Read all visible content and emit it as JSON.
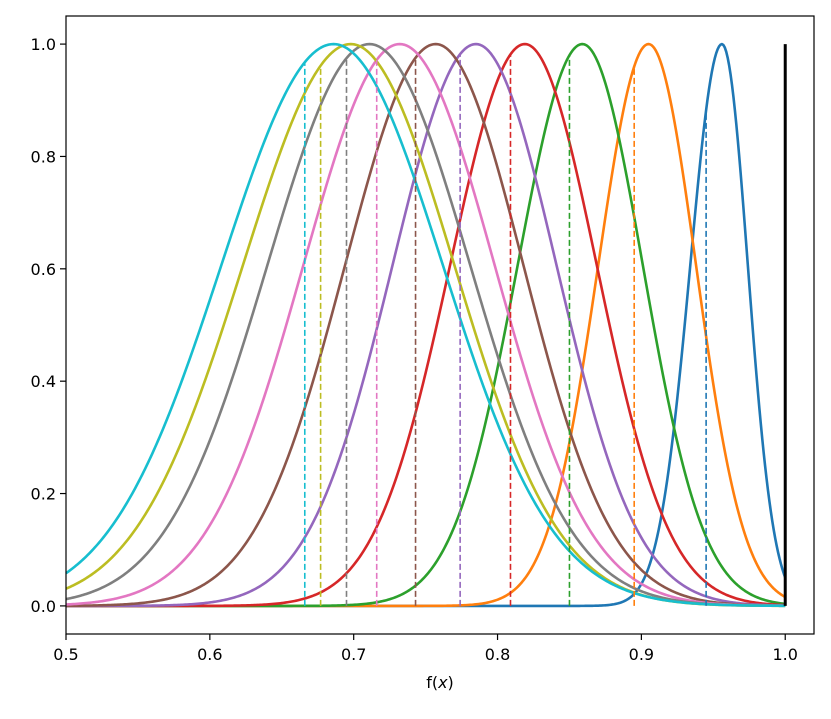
{
  "chart_data": {
    "type": "line",
    "title": "",
    "xlabel_prefix": "f(",
    "xlabel_var": "x",
    "xlabel_suffix": ")",
    "ylabel": "",
    "xlim": [
      0.5,
      1.02
    ],
    "ylim": [
      -0.05,
      1.05
    ],
    "x_ticks": [
      0.5,
      0.6,
      0.7,
      0.8,
      0.9,
      1.0
    ],
    "x_tick_labels": [
      "0.5",
      "0.6",
      "0.7",
      "0.8",
      "0.9",
      "1.0"
    ],
    "y_ticks": [
      0.0,
      0.2,
      0.4,
      0.6,
      0.8,
      1.0
    ],
    "y_tick_labels": [
      "0.0",
      "0.2",
      "0.4",
      "0.6",
      "0.8",
      "1.0"
    ],
    "grid": false,
    "legend": "none",
    "series": [
      {
        "color": "#1f77b4",
        "peak": 0.956,
        "sigma_left": 0.022,
        "sigma_right": 0.018,
        "mean_line": 0.945
      },
      {
        "color": "#ff7f0e",
        "peak": 0.905,
        "sigma_left": 0.035,
        "sigma_right": 0.033,
        "mean_line": 0.895
      },
      {
        "color": "#2ca02c",
        "peak": 0.859,
        "sigma_left": 0.045,
        "sigma_right": 0.042,
        "mean_line": 0.85
      },
      {
        "color": "#d62728",
        "peak": 0.819,
        "sigma_left": 0.052,
        "sigma_right": 0.05,
        "mean_line": 0.809
      },
      {
        "color": "#9467bd",
        "peak": 0.785,
        "sigma_left": 0.058,
        "sigma_right": 0.056,
        "mean_line": 0.774
      },
      {
        "color": "#8c564b",
        "peak": 0.757,
        "sigma_left": 0.063,
        "sigma_right": 0.061,
        "mean_line": 0.743
      },
      {
        "color": "#e377c2",
        "peak": 0.732,
        "sigma_left": 0.067,
        "sigma_right": 0.066,
        "mean_line": 0.716
      },
      {
        "color": "#7f7f7f",
        "peak": 0.711,
        "sigma_left": 0.071,
        "sigma_right": 0.07,
        "mean_line": 0.695
      },
      {
        "color": "#bcbd22",
        "peak": 0.698,
        "sigma_left": 0.075,
        "sigma_right": 0.072,
        "mean_line": 0.677
      },
      {
        "color": "#17becf",
        "peak": 0.686,
        "sigma_left": 0.078,
        "sigma_right": 0.076,
        "mean_line": 0.666
      }
    ],
    "vertical_line": {
      "x": 1.0,
      "y0": 0.0,
      "y1": 1.0,
      "color": "#000000"
    }
  }
}
